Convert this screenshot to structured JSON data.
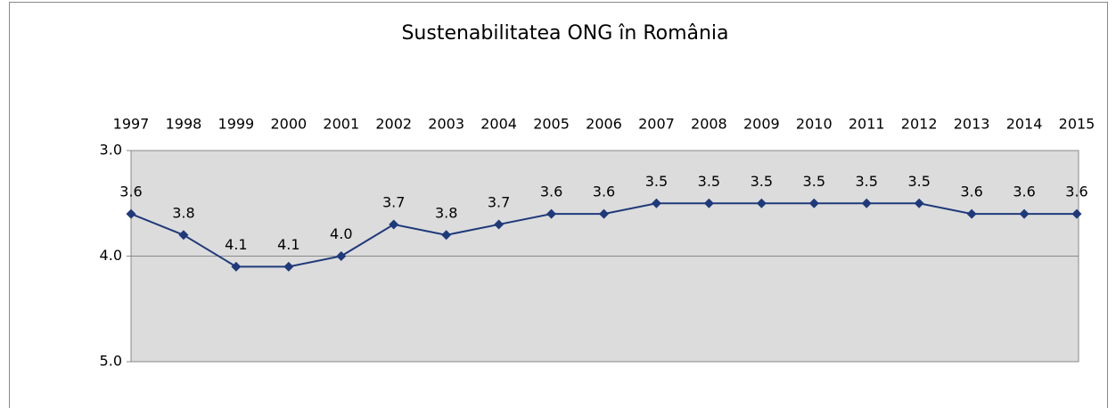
{
  "chart_data": {
    "type": "line",
    "title": "Sustenabilitatea ONG în România",
    "categories": [
      "1997",
      "1998",
      "1999",
      "2000",
      "2001",
      "2002",
      "2003",
      "2004",
      "2005",
      "2006",
      "2007",
      "2008",
      "2009",
      "2010",
      "2011",
      "2012",
      "2013",
      "2014",
      "2015"
    ],
    "series": [
      {
        "name": "Sustenabilitatea ONG",
        "color": "#1f3a7a",
        "values": [
          3.6,
          3.8,
          4.1,
          4.1,
          4.0,
          3.7,
          3.8,
          3.7,
          3.6,
          3.6,
          3.5,
          3.5,
          3.5,
          3.5,
          3.5,
          3.5,
          3.6,
          3.6,
          3.6
        ],
        "value_labels": [
          "3.6",
          "3.8",
          "4.1",
          "4.1",
          "4.0",
          "3.7",
          "3.8",
          "3.7",
          "3.6",
          "3.6",
          "3.5",
          "3.5",
          "3.5",
          "3.5",
          "3.5",
          "3.5",
          "3.6",
          "3.6",
          "3.6"
        ]
      }
    ],
    "ylim": [
      3,
      5
    ],
    "y_inverted": true,
    "yticks": [
      {
        "value": 3,
        "label": "3.0"
      },
      {
        "value": 4,
        "label": "4.0"
      },
      {
        "value": 5,
        "label": "5.0"
      }
    ],
    "grid": true,
    "x_axis_position": "top"
  }
}
